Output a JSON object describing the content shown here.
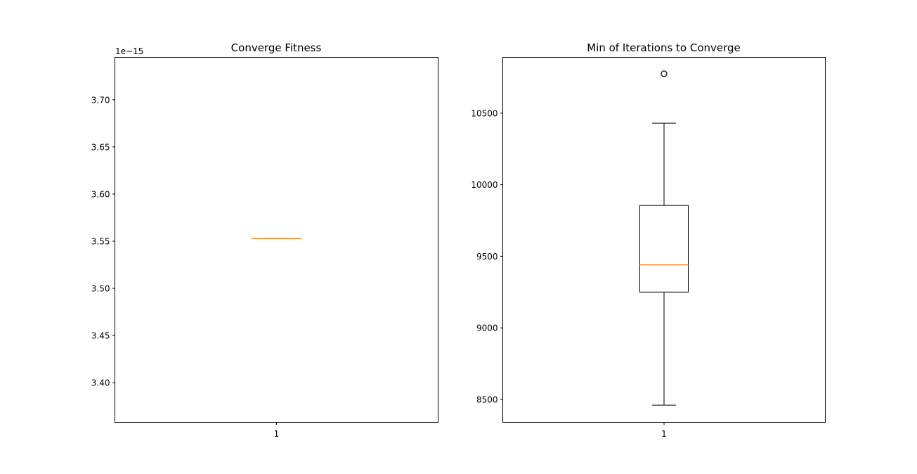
{
  "figure": {
    "background": "#ffffff",
    "box_color": "#000000",
    "median_color": "#ff7f0e",
    "flier_color": "#000000"
  },
  "chart_data": [
    {
      "type": "box",
      "title": "Converge Fitness",
      "xlabel": "",
      "ylabel": "",
      "y_offset_label": "1e−15",
      "categories": [
        "1"
      ],
      "ylim": [
        3.358,
        3.745
      ],
      "yticks": [
        3.4,
        3.45,
        3.5,
        3.55,
        3.6,
        3.65,
        3.7
      ],
      "ytick_labels": [
        "3.40",
        "3.45",
        "3.50",
        "3.55",
        "3.60",
        "3.65",
        "3.70"
      ],
      "xtick_labels": [
        "1"
      ],
      "boxes": [
        {
          "name": "1",
          "whisker_low": 3.5527,
          "q1": 3.5527,
          "median": 3.5527,
          "q3": 3.5527,
          "whisker_high": 3.5527,
          "fliers": []
        }
      ],
      "grid": false
    },
    {
      "type": "box",
      "title": "Min of Iterations to Converge",
      "xlabel": "",
      "ylabel": "",
      "categories": [
        "1"
      ],
      "ylim": [
        8340,
        10890
      ],
      "yticks": [
        8500,
        9000,
        9500,
        10000,
        10500
      ],
      "ytick_labels": [
        "8500",
        "9000",
        "9500",
        "10000",
        "10500"
      ],
      "xtick_labels": [
        "1"
      ],
      "boxes": [
        {
          "name": "1",
          "whisker_low": 8460,
          "q1": 9250,
          "median": 9440,
          "q3": 9855,
          "whisker_high": 10430,
          "fliers": [
            10775
          ]
        }
      ],
      "grid": false
    }
  ]
}
